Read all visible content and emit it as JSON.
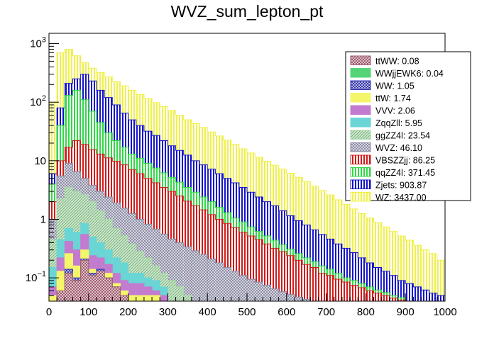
{
  "chart_data": {
    "type": "bar",
    "title": "WVZ_sum_lepton_pt",
    "xlabel": "",
    "ylabel": "",
    "y_scale": "log",
    "stacked": true,
    "xlim": [
      0,
      1000
    ],
    "ylim": [
      0.04,
      1500
    ],
    "x_ticks": [
      "0",
      "100",
      "200",
      "300",
      "400",
      "500",
      "600",
      "700",
      "800",
      "900",
      "1000"
    ],
    "y_ticks": [
      {
        "value": 0.1,
        "base": "10",
        "exp": "−1"
      },
      {
        "value": 1,
        "base": "1",
        "exp": ""
      },
      {
        "value": 10,
        "base": "10",
        "exp": ""
      },
      {
        "value": 100,
        "base": "10",
        "exp": "2"
      },
      {
        "value": 1000,
        "base": "10",
        "exp": "3"
      }
    ],
    "legend_position": "top-right",
    "bin_width": 20,
    "bin_lower_edges": [
      0,
      20,
      40,
      60,
      80,
      100,
      120,
      140,
      160,
      180,
      200,
      220,
      240,
      260,
      280,
      300,
      320,
      340,
      360,
      380,
      400,
      420,
      440,
      460,
      480,
      500,
      520,
      540,
      560,
      580,
      600,
      620,
      640,
      660,
      680,
      700,
      720,
      740,
      760,
      780,
      800,
      820,
      840,
      860,
      880,
      900,
      920,
      940,
      960,
      980
    ],
    "series": [
      {
        "label": "ttWW: 0.08",
        "color": "#a05a6e",
        "pattern": "cross",
        "cumulative": [
          0.04,
          0.06,
          0.12,
          0.09,
          0.2,
          0.11,
          0.13,
          0.1,
          0.07,
          0.05
        ]
      },
      {
        "label": "WWjjEWK6: 0.04",
        "color": "#55d477",
        "pattern": "solid",
        "cumulative": [
          0.04,
          0.06,
          0.12,
          0.09,
          0.2,
          0.11,
          0.13,
          0.1,
          0.07,
          0.05
        ]
      },
      {
        "label": "WW: 1.05",
        "color": "#3737b0",
        "pattern": "cross",
        "cumulative": [
          0.04,
          0.06,
          0.14,
          0.1,
          0.21,
          0.12,
          0.14,
          0.1,
          0.07,
          0.05
        ]
      },
      {
        "label": "ttW: 1.74",
        "color": "#f5f56a",
        "pattern": "solid",
        "cumulative": [
          0.05,
          0.13,
          0.26,
          0.16,
          0.3,
          0.14,
          0.14,
          0.12,
          0.08,
          0.06,
          0.05,
          0.05,
          0.05,
          0.05
        ]
      },
      {
        "label": "VVV: 2.06",
        "color": "#c37bd0",
        "pattern": "solid",
        "cumulative": [
          0.07,
          0.22,
          0.42,
          0.3,
          0.55,
          0.24,
          0.22,
          0.17,
          0.12,
          0.09,
          0.08,
          0.08,
          0.07,
          0.06,
          0.05
        ]
      },
      {
        "label": "ZqqZll: 5.95",
        "color": "#6ad5d5",
        "pattern": "solid",
        "cumulative": [
          0.15,
          0.45,
          0.7,
          0.6,
          0.85,
          0.5,
          0.4,
          0.3,
          0.22,
          0.18,
          0.12,
          0.12,
          0.1,
          0.09,
          0.07
        ]
      },
      {
        "label": "ggZZ4l: 23.54",
        "color": "#a6dba6",
        "pattern": "diag",
        "cumulative": [
          0.45,
          2.2,
          3.5,
          3.0,
          2.6,
          2.0,
          1.4,
          1.0,
          0.7,
          0.52,
          0.38,
          0.28,
          0.22,
          0.16,
          0.12,
          0.09,
          0.07,
          0.05
        ]
      },
      {
        "label": "WVZ: 46.10",
        "color": "#8c8ca6",
        "pattern": "cross",
        "cumulative": [
          1.0,
          5.5,
          9.0,
          6.5,
          5.0,
          3.8,
          3.0,
          2.4,
          1.9,
          1.55,
          1.25,
          1.0,
          0.82,
          0.68,
          0.56,
          0.46,
          0.4,
          0.34,
          0.29,
          0.25,
          0.21,
          0.18,
          0.15,
          0.13,
          0.11,
          0.095,
          0.085,
          0.075,
          0.065,
          0.058,
          0.052,
          0.047,
          0.043,
          0.04
        ]
      },
      {
        "label": "VBSZZjj: 86.25",
        "color": "#d01b1b",
        "pattern": "vert",
        "cumulative": [
          2.0,
          10.0,
          17.0,
          22.0,
          19.0,
          15.5,
          13.0,
          11.2,
          9.8,
          8.5,
          7.0,
          6.0,
          5.0,
          4.2,
          3.5,
          3.0,
          2.5,
          2.05,
          1.7,
          1.45,
          1.2,
          1.0,
          0.85,
          0.72,
          0.6,
          0.52,
          0.45,
          0.38,
          0.32,
          0.28,
          0.24,
          0.2,
          0.17,
          0.15,
          0.12,
          0.11,
          0.095,
          0.085,
          0.075,
          0.068,
          0.06,
          0.055,
          0.05,
          0.045,
          0.042
        ]
      },
      {
        "label": "qqZZ4l: 371.45",
        "color": "#31d847",
        "pattern": "vert",
        "cumulative": [
          4.0,
          40,
          130,
          160,
          110,
          70,
          45,
          30,
          22,
          17,
          13,
          11,
          9,
          7.5,
          6.2,
          5.2,
          4.3,
          3.5,
          2.9,
          2.4,
          2.0,
          1.6,
          1.3,
          1.05,
          0.9,
          0.74,
          0.62,
          0.52,
          0.44,
          0.37,
          0.31,
          0.26,
          0.22,
          0.19,
          0.16,
          0.14,
          0.12,
          0.1,
          0.09,
          0.08,
          0.07,
          0.062,
          0.056,
          0.05,
          0.046
        ]
      },
      {
        "label": "Zjets: 903.87",
        "color": "#1414c8",
        "pattern": "vert",
        "cumulative": [
          6.0,
          80,
          210,
          250,
          300,
          230,
          160,
          120,
          90,
          65,
          50,
          40,
          32,
          27,
          22,
          18,
          15,
          12.5,
          10,
          8.5,
          7.2,
          6,
          5,
          4.2,
          3.5,
          2.9,
          2.4,
          2.0,
          1.7,
          1.4,
          1.15,
          0.95,
          0.8,
          0.66,
          0.55,
          0.46,
          0.38,
          0.32,
          0.27,
          0.22,
          0.18,
          0.15,
          0.13,
          0.11,
          0.09,
          0.08,
          0.07,
          0.062,
          0.055,
          0.05
        ]
      },
      {
        "label": "WZ: 3437.00",
        "color": "#f0f04a",
        "pattern": "vert",
        "cumulative": [
          100,
          700,
          800,
          620,
          470,
          380,
          320,
          270,
          225,
          190,
          160,
          135,
          115,
          98,
          84,
          72,
          60,
          50,
          43,
          37,
          31,
          26.5,
          22.5,
          19,
          16,
          13.5,
          11.5,
          9.8,
          8.4,
          7.2,
          6.1,
          5.2,
          4.4,
          3.7,
          3.1,
          2.6,
          2.15,
          1.8,
          1.5,
          1.25,
          1.05,
          0.88,
          0.74,
          0.62,
          0.52,
          0.44,
          0.36,
          0.3,
          0.26,
          0.2
        ]
      }
    ]
  }
}
